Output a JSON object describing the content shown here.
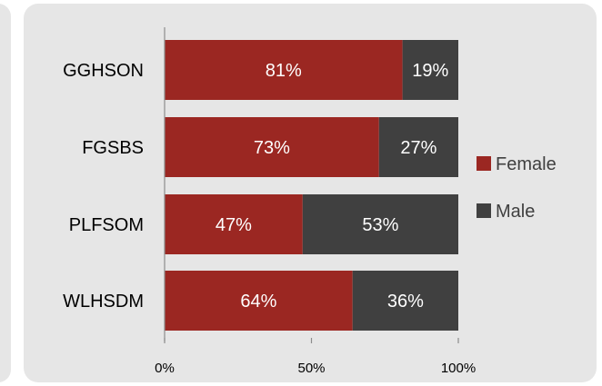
{
  "chart_data": {
    "type": "bar",
    "orientation": "horizontal",
    "stacked": true,
    "categories": [
      "GGHSON",
      "FGSBS",
      "PLFSOM",
      "WLHSDM"
    ],
    "series": [
      {
        "name": "Female",
        "values": [
          81,
          73,
          47,
          64
        ],
        "labels": [
          "81%",
          "73%",
          "47%",
          "64%"
        ],
        "color": "#9b2722"
      },
      {
        "name": "Male",
        "values": [
          19,
          27,
          53,
          36
        ],
        "labels": [
          "19%",
          "27%",
          "53%",
          "36%"
        ],
        "color": "#404040"
      }
    ],
    "xticks": [
      "0%",
      "50%",
      "100%"
    ],
    "xlim": [
      0,
      100
    ],
    "legend_position": "right",
    "grid": false
  },
  "colors": {
    "panel_background": "#e6e6e6",
    "axis": "#8c8c8c"
  }
}
